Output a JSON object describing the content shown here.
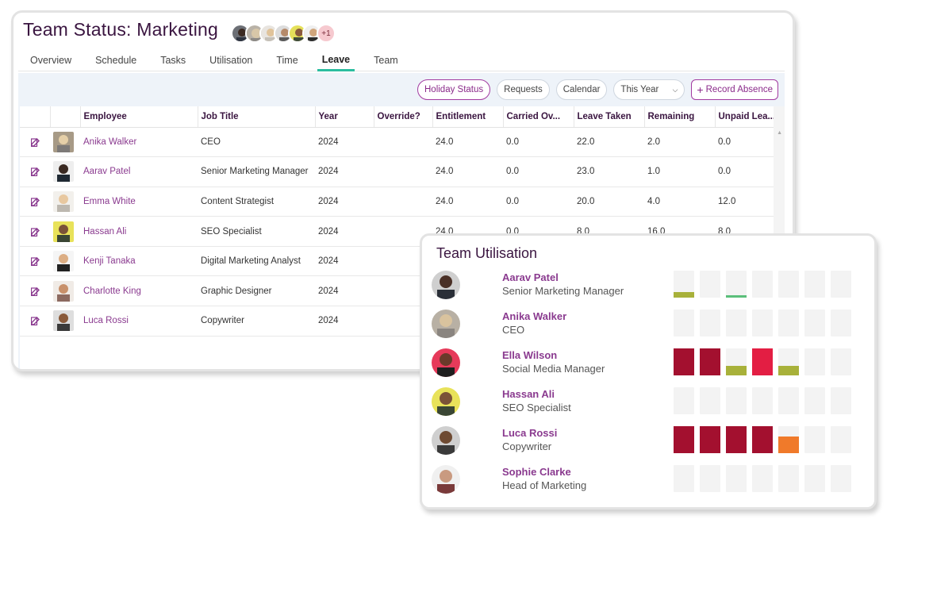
{
  "header": {
    "title": "Team Status: Marketing",
    "more_count": "+1"
  },
  "tabs": [
    "Overview",
    "Schedule",
    "Tasks",
    "Utilisation",
    "Time",
    "Leave",
    "Team"
  ],
  "active_tab": "Leave",
  "toolbar": {
    "holiday_status": "Holiday Status",
    "requests": "Requests",
    "calendar": "Calendar",
    "period": "This Year",
    "record_absence": "Record Absence"
  },
  "table": {
    "columns": [
      "Employee",
      "Job Title",
      "Year",
      "Override?",
      "Entitlement",
      "Carried Ov...",
      "Leave Taken",
      "Remaining",
      "Unpaid Lea..."
    ],
    "rows": [
      {
        "employee": "Anika Walker",
        "job": "CEO",
        "year": "2024",
        "override": "",
        "entitlement": "24.0",
        "carried": "0.0",
        "taken": "22.0",
        "remaining": "2.0",
        "unpaid": "0.0"
      },
      {
        "employee": "Aarav Patel",
        "job": "Senior Marketing Manager",
        "year": "2024",
        "override": "",
        "entitlement": "24.0",
        "carried": "0.0",
        "taken": "23.0",
        "remaining": "1.0",
        "unpaid": "0.0"
      },
      {
        "employee": "Emma White",
        "job": "Content Strategist",
        "year": "2024",
        "override": "",
        "entitlement": "24.0",
        "carried": "0.0",
        "taken": "20.0",
        "remaining": "4.0",
        "unpaid": "12.0"
      },
      {
        "employee": "Hassan Ali",
        "job": "SEO Specialist",
        "year": "2024",
        "override": "",
        "entitlement": "24.0",
        "carried": "0.0",
        "taken": "8.0",
        "remaining": "16.0",
        "unpaid": "8.0"
      },
      {
        "employee": "Kenji Tanaka",
        "job": "Digital Marketing Analyst",
        "year": "2024",
        "override": "",
        "entitlement": "",
        "carried": "",
        "taken": "",
        "remaining": "",
        "unpaid": ""
      },
      {
        "employee": "Charlotte King",
        "job": "Graphic Designer",
        "year": "2024",
        "override": "",
        "entitlement": "",
        "carried": "",
        "taken": "",
        "remaining": "",
        "unpaid": ""
      },
      {
        "employee": "Luca Rossi",
        "job": "Copywriter",
        "year": "2024",
        "override": "",
        "entitlement": "",
        "carried": "",
        "taken": "",
        "remaining": "",
        "unpaid": ""
      }
    ]
  },
  "utilisation": {
    "title": "Team Utilisation",
    "colors": {
      "empty": "#f3f3f3",
      "dark_red": "#a3102f",
      "red": "#e31e43",
      "olive": "#a8b13a",
      "green": "#5bbf7a",
      "orange": "#f07a2a"
    },
    "people": [
      {
        "name": "Aarav Patel",
        "role": "Senior Marketing Manager",
        "blocks": [
          {
            "c": "olive",
            "f": 0.22
          },
          {
            "c": "empty",
            "f": 0
          },
          {
            "c": "green",
            "f": 0.1
          },
          {
            "c": "empty",
            "f": 0
          },
          {
            "c": "empty",
            "f": 0
          },
          {
            "c": "empty",
            "f": 0
          },
          {
            "c": "empty",
            "f": 0
          }
        ]
      },
      {
        "name": "Anika Walker",
        "role": "CEO",
        "blocks": [
          {
            "c": "empty",
            "f": 0
          },
          {
            "c": "empty",
            "f": 0
          },
          {
            "c": "empty",
            "f": 0
          },
          {
            "c": "empty",
            "f": 0
          },
          {
            "c": "empty",
            "f": 0
          },
          {
            "c": "empty",
            "f": 0
          },
          {
            "c": "empty",
            "f": 0
          }
        ]
      },
      {
        "name": "Ella Wilson",
        "role": "Social Media Manager",
        "blocks": [
          {
            "c": "dark_red",
            "f": 1
          },
          {
            "c": "dark_red",
            "f": 1
          },
          {
            "c": "olive",
            "f": 0.35
          },
          {
            "c": "red",
            "f": 1
          },
          {
            "c": "olive",
            "f": 0.35
          },
          {
            "c": "empty",
            "f": 0
          },
          {
            "c": "empty",
            "f": 0
          }
        ]
      },
      {
        "name": "Hassan Ali",
        "role": "SEO Specialist",
        "blocks": [
          {
            "c": "empty",
            "f": 0
          },
          {
            "c": "empty",
            "f": 0
          },
          {
            "c": "empty",
            "f": 0
          },
          {
            "c": "empty",
            "f": 0
          },
          {
            "c": "empty",
            "f": 0
          },
          {
            "c": "empty",
            "f": 0
          },
          {
            "c": "empty",
            "f": 0
          }
        ]
      },
      {
        "name": "Luca Rossi",
        "role": "Copywriter",
        "blocks": [
          {
            "c": "dark_red",
            "f": 1
          },
          {
            "c": "dark_red",
            "f": 1
          },
          {
            "c": "dark_red",
            "f": 1
          },
          {
            "c": "dark_red",
            "f": 1
          },
          {
            "c": "orange",
            "f": 0.62
          },
          {
            "c": "empty",
            "f": 0
          },
          {
            "c": "empty",
            "f": 0
          }
        ]
      },
      {
        "name": "Sophie Clarke",
        "role": "Head of Marketing",
        "blocks": [
          {
            "c": "empty",
            "f": 0
          },
          {
            "c": "empty",
            "f": 0
          },
          {
            "c": "empty",
            "f": 0
          },
          {
            "c": "empty",
            "f": 0
          },
          {
            "c": "empty",
            "f": 0
          },
          {
            "c": "empty",
            "f": 0
          },
          {
            "c": "empty",
            "f": 0
          }
        ]
      }
    ]
  }
}
